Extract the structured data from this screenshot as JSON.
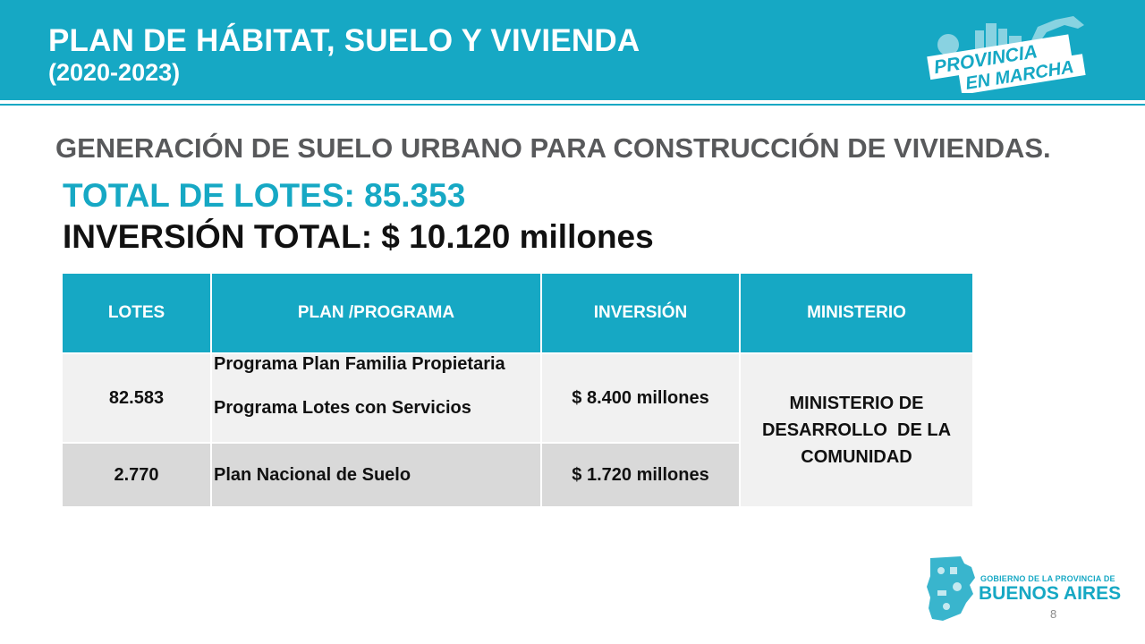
{
  "header": {
    "title": "PLAN DE HÁBITAT, SUELO Y VIVIENDA",
    "years": "(2020-2023)",
    "logo_line1": "PROVINCIA",
    "logo_line2": "EN MARCHA"
  },
  "subtitle": "GENERACIÓN DE SUELO URBANO PARA CONSTRUCCIÓN DE VIVIENDAS.",
  "total_lotes": "TOTAL DE LOTES: 85.353",
  "inversion_total": "INVERSIÓN TOTAL: $ 10.120 millones",
  "table": {
    "headers": [
      "LOTES",
      "PLAN /PROGRAMA",
      "INVERSIÓN",
      "MINISTERIO"
    ],
    "rows": [
      {
        "lotes": "82.583",
        "programas": [
          "Programa Plan Familia Propietaria",
          "Programa Lotes con Servicios"
        ],
        "inversion": "$ 8.400 millones"
      },
      {
        "lotes": "2.770",
        "programas": [
          "Plan Nacional de Suelo"
        ],
        "inversion": "$ 1.720 millones"
      }
    ],
    "ministerio": [
      "MINISTERIO DE",
      "DESARROLLO  DE LA",
      "COMUNIDAD"
    ]
  },
  "footer": {
    "gobierno": "GOBIERNO DE LA PROVINCIA DE",
    "buenos_aires": "BUENOS AIRES",
    "page_number": "8"
  },
  "colors": {
    "accent": "#16a8c4",
    "subtitle_gray": "#58595b",
    "row1_bg": "#f1f1f1",
    "row2_bg": "#d9d9d9"
  }
}
